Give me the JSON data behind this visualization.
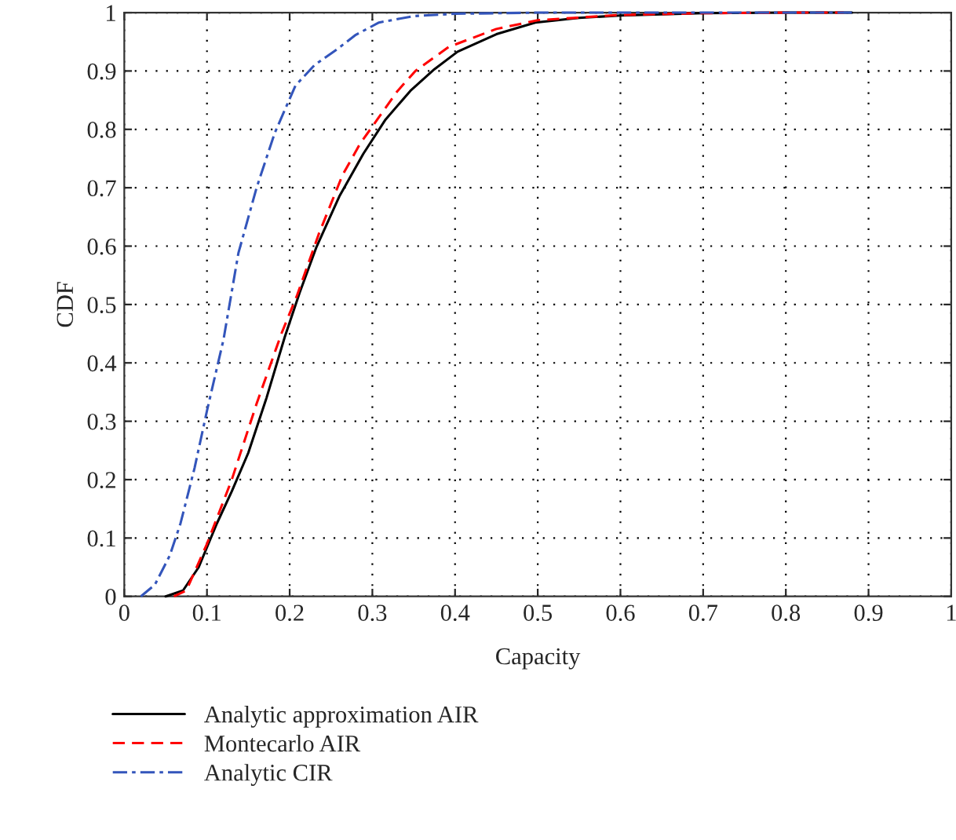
{
  "chart_data": {
    "type": "line",
    "xlabel": "Capacity",
    "ylabel": "CDF",
    "xlim": [
      0,
      1
    ],
    "ylim": [
      0,
      1
    ],
    "xticks": [
      0,
      0.1,
      0.2,
      0.3,
      0.4,
      0.5,
      0.6,
      0.7,
      0.8,
      0.9,
      1
    ],
    "yticks": [
      0,
      0.1,
      0.2,
      0.3,
      0.4,
      0.5,
      0.6,
      0.7,
      0.8,
      0.9,
      1
    ],
    "grid": true,
    "legend": "bottom left",
    "series": [
      {
        "name": "Analytic approximation AIR",
        "color": "#000000",
        "line_style": "solid",
        "x": [
          0.05,
          0.071,
          0.09,
          0.112,
          0.13,
          0.15,
          0.172,
          0.194,
          0.212,
          0.232,
          0.26,
          0.289,
          0.316,
          0.346,
          0.375,
          0.403,
          0.45,
          0.497,
          0.55,
          0.6,
          0.7,
          0.8,
          0.88
        ],
        "values": [
          0,
          0.01,
          0.05,
          0.125,
          0.18,
          0.246,
          0.34,
          0.444,
          0.52,
          0.597,
          0.685,
          0.758,
          0.817,
          0.866,
          0.903,
          0.933,
          0.963,
          0.983,
          0.991,
          0.995,
          0.999,
          1.0,
          1.0
        ]
      },
      {
        "name": "Montecarlo AIR",
        "color": "#ff0000",
        "line_style": "dashed",
        "x": [
          0.06,
          0.075,
          0.1,
          0.13,
          0.16,
          0.19,
          0.209,
          0.235,
          0.264,
          0.285,
          0.308,
          0.33,
          0.352,
          0.392,
          0.45,
          0.5,
          0.6,
          0.7,
          0.8,
          0.87
        ],
        "values": [
          0,
          0.01,
          0.09,
          0.2,
          0.33,
          0.45,
          0.516,
          0.62,
          0.722,
          0.775,
          0.821,
          0.865,
          0.9,
          0.941,
          0.972,
          0.987,
          0.996,
          0.999,
          1.0,
          1.0
        ]
      },
      {
        "name": "Analytic CIR",
        "color": "#3355bb",
        "line_style": "dashdot",
        "x": [
          0.02,
          0.037,
          0.055,
          0.068,
          0.085,
          0.1,
          0.12,
          0.138,
          0.16,
          0.182,
          0.207,
          0.23,
          0.258,
          0.28,
          0.308,
          0.35,
          0.4,
          0.5,
          0.6,
          0.7,
          0.8,
          0.88
        ],
        "values": [
          0,
          0.02,
          0.07,
          0.125,
          0.22,
          0.318,
          0.44,
          0.588,
          0.7,
          0.794,
          0.875,
          0.91,
          0.938,
          0.962,
          0.983,
          0.994,
          0.998,
          1.0,
          1.0,
          1.0,
          1.0,
          1.0
        ]
      }
    ]
  }
}
